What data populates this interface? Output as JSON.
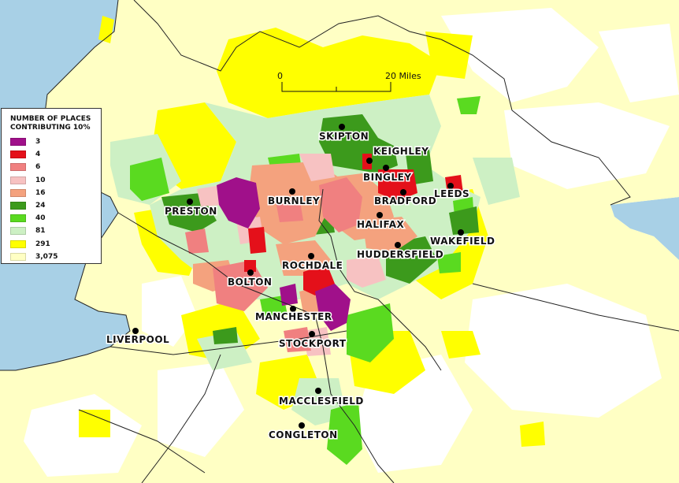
{
  "legend": {
    "title_line1": "NUMBER OF PLACES",
    "title_line2": "CONTRIBUTING 10%",
    "items": [
      {
        "label": "3",
        "color": "#a0108a"
      },
      {
        "label": "4",
        "color": "#e4101a"
      },
      {
        "label": "6",
        "color": "#f08080"
      },
      {
        "label": "10",
        "color": "#f7c2c2"
      },
      {
        "label": "16",
        "color": "#f4a27e"
      },
      {
        "label": "24",
        "color": "#3c9a1c"
      },
      {
        "label": "40",
        "color": "#5ada20"
      },
      {
        "label": "81",
        "color": "#cdf0c4"
      },
      {
        "label": "291",
        "color": "#ffff00"
      },
      {
        "label": "3,075",
        "color": "#ffffc4"
      }
    ]
  },
  "scale_bar": {
    "start_label": "0",
    "end_label": "20 Miles"
  },
  "towns": [
    {
      "name": "SKIPTON"
    },
    {
      "name": "KEIGHLEY"
    },
    {
      "name": "BINGLEY"
    },
    {
      "name": "LEEDS"
    },
    {
      "name": "BURNLEY"
    },
    {
      "name": "BRADFORD"
    },
    {
      "name": "PRESTON"
    },
    {
      "name": "HALIFAX"
    },
    {
      "name": "WAKEFIELD"
    },
    {
      "name": "HUDDERSFIELD"
    },
    {
      "name": "ROCHDALE"
    },
    {
      "name": "BOLTON"
    },
    {
      "name": "MANCHESTER"
    },
    {
      "name": "LIVERPOOL"
    },
    {
      "name": "STOCKPORT"
    },
    {
      "name": "MACCLESFIELD"
    },
    {
      "name": "CONGLETON"
    }
  ],
  "colors": {
    "sea": "#a8d0e6",
    "land": "#ffffff",
    "boundary": "#222222"
  }
}
